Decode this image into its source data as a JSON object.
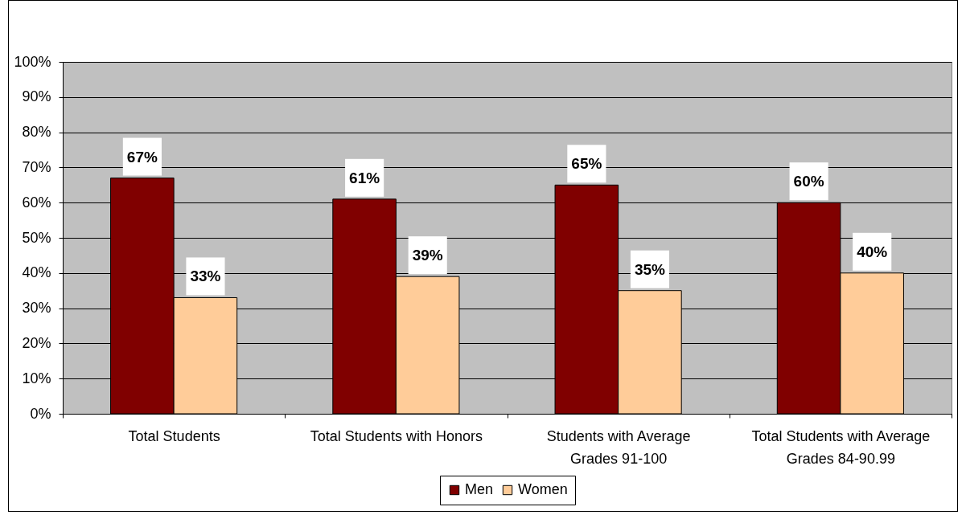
{
  "chart_data": {
    "type": "bar",
    "categories": [
      "Total Students",
      "Total Students with Honors",
      "Students with Average Grades 91-100",
      "Total Students with Average Grades 84-90.99"
    ],
    "series": [
      {
        "name": "Men",
        "color": "#800000",
        "values": [
          67,
          61,
          65,
          60
        ],
        "value_labels": [
          "67%",
          "61%",
          "65%",
          "60%"
        ]
      },
      {
        "name": "Women",
        "color": "#ffcc99",
        "values": [
          33,
          39,
          35,
          40
        ],
        "value_labels": [
          "33%",
          "39%",
          "35%",
          "40%"
        ]
      }
    ],
    "ylim": [
      0,
      100
    ],
    "yticks": [
      {
        "value": 0,
        "label": "0%"
      },
      {
        "value": 10,
        "label": "10%"
      },
      {
        "value": 20,
        "label": "20%"
      },
      {
        "value": 30,
        "label": "30%"
      },
      {
        "value": 40,
        "label": "40%"
      },
      {
        "value": 50,
        "label": "50%"
      },
      {
        "value": 60,
        "label": "60%"
      },
      {
        "value": 70,
        "label": "70%"
      },
      {
        "value": 80,
        "label": "80%"
      },
      {
        "value": 90,
        "label": "90%"
      },
      {
        "value": 100,
        "label": "100%"
      }
    ],
    "grid": "y",
    "legend": "bottom"
  }
}
